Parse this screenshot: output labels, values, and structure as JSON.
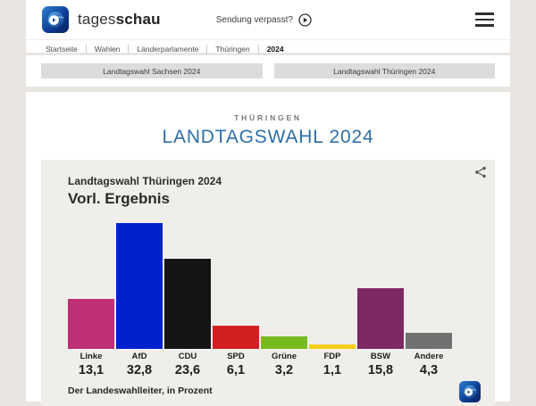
{
  "header": {
    "brand_regular": "tages",
    "brand_bold": "schau",
    "sendung_verpasst": "Sendung verpasst?",
    "breadcrumb": [
      "Startseite",
      "Wahlen",
      "Länderparlamente",
      "Thüringen",
      "2024"
    ]
  },
  "nav_buttons": [
    {
      "label": "Landtagswahl Sachsen 2024"
    },
    {
      "label": "Landtagswahl Thüringen 2024"
    }
  ],
  "page": {
    "eyebrow": "THÜRINGEN",
    "title": "LANDTAGSWAHL 2024",
    "title_color": "#2e6fa8"
  },
  "chart_data": {
    "type": "bar",
    "title": "Landtagswahl Thüringen 2024",
    "subtitle": "Vorl. Ergebnis",
    "source": "Der Landeswahlleiter, in Prozent",
    "unit": "Prozent",
    "categories": [
      "Linke",
      "AfD",
      "CDU",
      "SPD",
      "Grüne",
      "FDP",
      "BSW",
      "Andere"
    ],
    "values": [
      13.1,
      32.8,
      23.6,
      6.1,
      3.2,
      1.1,
      15.8,
      4.3
    ],
    "values_display": [
      "13,1",
      "32,8",
      "23,6",
      "6,1",
      "3,2",
      "1,1",
      "15,8",
      "4,3"
    ],
    "colors": [
      "#be3075",
      "#0121cd",
      "#141414",
      "#d22020",
      "#77bc1f",
      "#f7ce17",
      "#7e2863",
      "#707070"
    ],
    "ylim": [
      0,
      35
    ],
    "grid": false,
    "legend": false,
    "background": "#efeeeb"
  }
}
